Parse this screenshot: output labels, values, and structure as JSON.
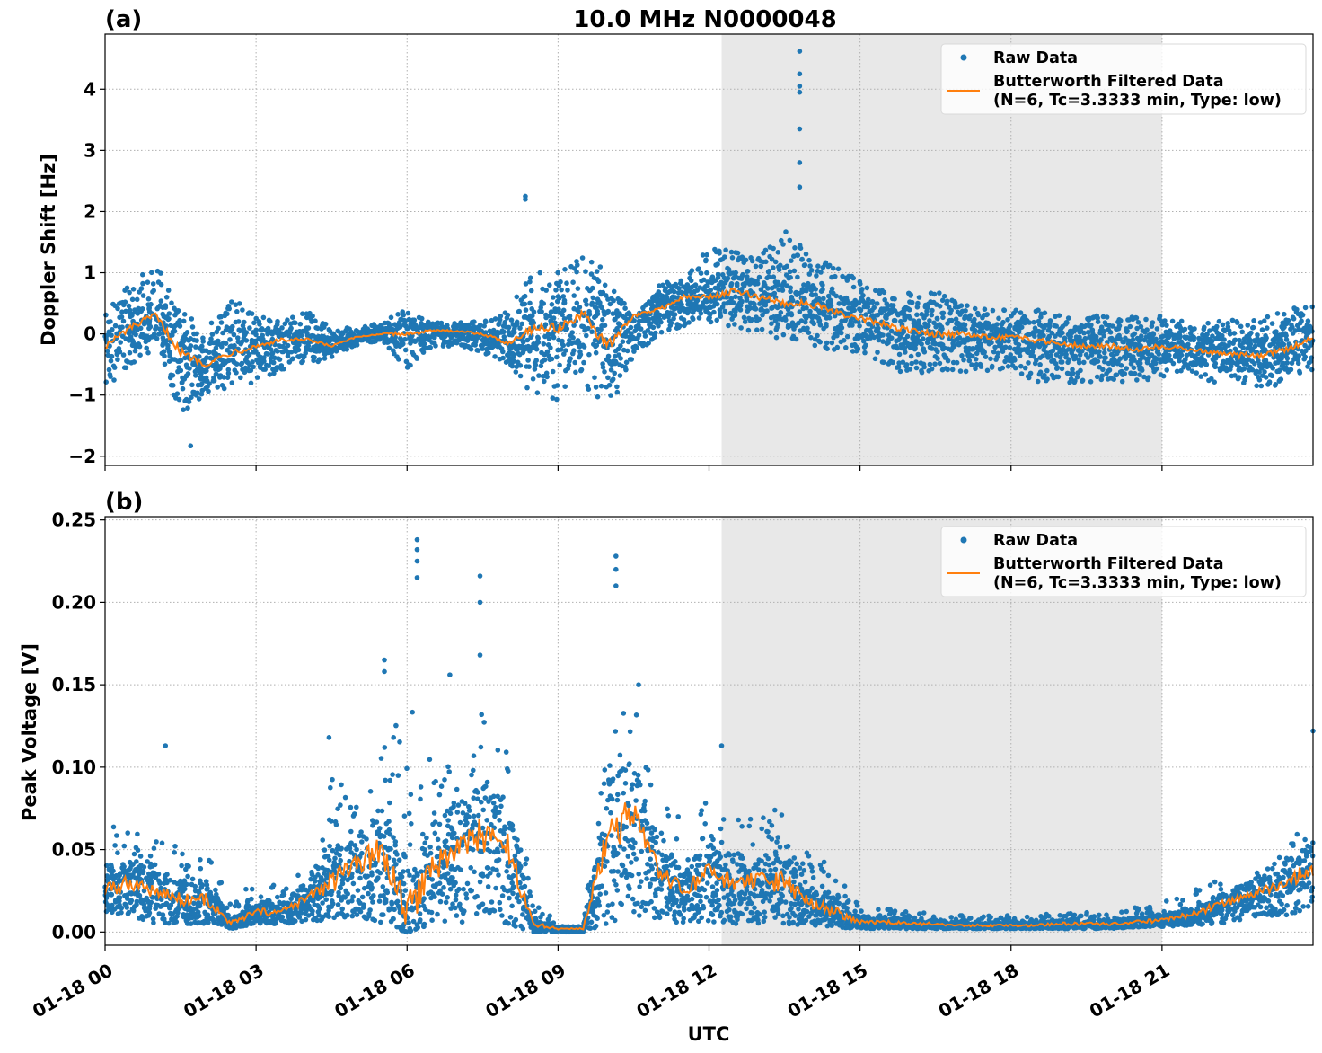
{
  "colors": {
    "raw": "#1f77b4",
    "filtered": "#ff7f0e",
    "shade": "#e8e8e8",
    "grid": "#b0b0b0"
  },
  "chart_data": [
    {
      "type": "scatter",
      "panel_label": "(a)",
      "title": "10.0 MHz N0000048",
      "xlabel": "",
      "ylabel": "Doppler Shift [Hz]",
      "xlim_hours": [
        0,
        24
      ],
      "ylim": [
        -2.15,
        4.9
      ],
      "yticks": [
        -2,
        -1,
        0,
        1,
        2,
        3,
        4
      ],
      "ytick_labels": [
        "−2",
        "−1",
        "0",
        "1",
        "2",
        "3",
        "4"
      ],
      "grid": true,
      "shaded_hours": [
        12.25,
        21.0
      ],
      "legend_position": "upper-right",
      "legend": [
        {
          "label": "Raw Data",
          "kind": "marker"
        },
        {
          "label": "Butterworth Filtered Data",
          "label2": "(N=6, Tc=3.3333 min, Type: low)",
          "kind": "line"
        }
      ],
      "series": [
        {
          "name": "Raw Data",
          "kind": "scatter-band",
          "x": [
            0,
            0.5,
            1.0,
            1.5,
            2.0,
            2.5,
            3.0,
            3.5,
            4.0,
            4.5,
            5.0,
            5.5,
            6.0,
            6.5,
            7.0,
            7.5,
            8.0,
            8.5,
            9.0,
            9.5,
            10.0,
            10.5,
            11.0,
            11.5,
            12.0,
            12.5,
            13.0,
            13.5,
            14.0,
            14.5,
            15.0,
            15.5,
            16.0,
            16.5,
            17.0,
            17.5,
            18.0,
            18.5,
            19.0,
            19.5,
            20.0,
            20.5,
            21.0,
            21.5,
            22.0,
            22.5,
            23.0,
            23.5,
            24.0
          ],
          "low": [
            -0.9,
            -0.5,
            -0.3,
            -1.3,
            -1.0,
            -0.9,
            -0.8,
            -0.6,
            -0.5,
            -0.4,
            -0.2,
            -0.1,
            -0.6,
            -0.2,
            -0.2,
            -0.3,
            -0.5,
            -1.0,
            -1.1,
            -0.8,
            -1.3,
            -0.4,
            0.0,
            0.1,
            0.2,
            0.1,
            0.0,
            -0.1,
            -0.2,
            -0.3,
            -0.3,
            -0.5,
            -0.7,
            -0.6,
            -0.7,
            -0.6,
            -0.6,
            -0.8,
            -0.8,
            -0.8,
            -0.8,
            -0.8,
            -0.7,
            -0.6,
            -0.8,
            -0.8,
            -0.9,
            -0.8,
            -0.6
          ],
          "high": [
            0.5,
            0.8,
            1.2,
            0.4,
            0.1,
            0.6,
            0.3,
            0.2,
            0.4,
            0.1,
            0.1,
            0.2,
            0.4,
            0.2,
            0.2,
            0.2,
            0.4,
            1.0,
            1.0,
            1.3,
            1.0,
            0.2,
            0.8,
            1.0,
            1.4,
            1.4,
            1.3,
            1.7,
            1.3,
            1.1,
            0.9,
            0.7,
            0.7,
            0.7,
            0.5,
            0.4,
            0.4,
            0.4,
            0.3,
            0.3,
            0.3,
            0.3,
            0.3,
            0.2,
            0.2,
            0.3,
            0.3,
            0.4,
            0.5
          ]
        },
        {
          "name": "Butterworth Filtered Data",
          "kind": "line",
          "x": [
            0,
            0.5,
            1.0,
            1.5,
            2.0,
            2.5,
            3.0,
            3.5,
            4.0,
            4.5,
            5.0,
            5.5,
            6.0,
            6.5,
            7.0,
            7.5,
            8.0,
            8.5,
            9.0,
            9.5,
            10.0,
            10.5,
            11.0,
            11.5,
            12.0,
            12.5,
            13.0,
            13.5,
            14.0,
            14.5,
            15.0,
            15.5,
            16.0,
            16.5,
            17.0,
            17.5,
            18.0,
            18.5,
            19.0,
            19.5,
            20.0,
            20.5,
            21.0,
            21.5,
            22.0,
            22.5,
            23.0,
            23.5,
            24.0
          ],
          "y": [
            -0.2,
            0.1,
            0.3,
            -0.3,
            -0.5,
            -0.3,
            -0.2,
            -0.1,
            -0.1,
            -0.2,
            -0.05,
            0.0,
            0.0,
            0.05,
            0.05,
            0.0,
            -0.15,
            0.1,
            0.1,
            0.3,
            -0.2,
            0.3,
            0.4,
            0.6,
            0.6,
            0.7,
            0.6,
            0.5,
            0.5,
            0.35,
            0.25,
            0.15,
            0.05,
            0.0,
            0.0,
            -0.05,
            -0.05,
            -0.1,
            -0.15,
            -0.2,
            -0.2,
            -0.25,
            -0.2,
            -0.25,
            -0.3,
            -0.35,
            -0.35,
            -0.25,
            -0.05
          ]
        }
      ],
      "outliers": [
        {
          "x": 13.8,
          "y": 4.62
        },
        {
          "x": 13.8,
          "y": 4.25
        },
        {
          "x": 13.8,
          "y": 4.05
        },
        {
          "x": 13.8,
          "y": 3.95
        },
        {
          "x": 13.8,
          "y": 3.35
        },
        {
          "x": 13.8,
          "y": 2.8
        },
        {
          "x": 13.8,
          "y": 2.4
        },
        {
          "x": 8.35,
          "y": 2.25
        },
        {
          "x": 8.35,
          "y": 2.2
        },
        {
          "x": 1.7,
          "y": -1.83
        }
      ]
    },
    {
      "type": "scatter",
      "panel_label": "(b)",
      "title": "",
      "xlabel": "UTC",
      "ylabel": "Peak Voltage [V]",
      "xlim_hours": [
        0,
        24
      ],
      "ylim": [
        -0.008,
        0.252
      ],
      "yticks": [
        0.0,
        0.05,
        0.1,
        0.15,
        0.2,
        0.25
      ],
      "ytick_labels": [
        "0.00",
        "0.05",
        "0.10",
        "0.15",
        "0.20",
        "0.25"
      ],
      "xticks_hours": [
        0,
        3,
        6,
        9,
        12,
        15,
        18,
        21
      ],
      "xtick_labels": [
        "01-18 00",
        "01-18 03",
        "01-18 06",
        "01-18 09",
        "01-18 12",
        "01-18 15",
        "01-18 18",
        "01-18 21"
      ],
      "grid": true,
      "shaded_hours": [
        12.25,
        21.0
      ],
      "legend_position": "upper-right",
      "legend": [
        {
          "label": "Raw Data",
          "kind": "marker"
        },
        {
          "label": "Butterworth Filtered Data",
          "label2": "(N=6, Tc=3.3333 min, Type: low)",
          "kind": "line"
        }
      ],
      "series": [
        {
          "name": "Raw Data",
          "kind": "scatter-band",
          "x": [
            0,
            0.5,
            1.0,
            1.5,
            2.0,
            2.5,
            3.0,
            3.5,
            4.0,
            4.5,
            5.0,
            5.5,
            6.0,
            6.5,
            7.0,
            7.5,
            8.0,
            8.5,
            9.0,
            9.5,
            10.0,
            10.5,
            11.0,
            11.5,
            12.0,
            12.5,
            13.0,
            13.5,
            14.0,
            14.5,
            15.0,
            15.5,
            16.0,
            16.5,
            17.0,
            17.5,
            18.0,
            18.5,
            19.0,
            19.5,
            20.0,
            20.5,
            21.0,
            21.5,
            22.0,
            22.5,
            23.0,
            23.5,
            24.0
          ],
          "low": [
            0.01,
            0.01,
            0.005,
            0.005,
            0.005,
            0.002,
            0.005,
            0.005,
            0.005,
            0.008,
            0.01,
            0.005,
            0.0,
            0.005,
            0.005,
            0.01,
            0.005,
            0.0,
            0.0,
            0.0,
            0.005,
            0.01,
            0.008,
            0.005,
            0.006,
            0.005,
            0.005,
            0.005,
            0.004,
            0.003,
            0.002,
            0.002,
            0.002,
            0.002,
            0.002,
            0.002,
            0.002,
            0.002,
            0.002,
            0.002,
            0.002,
            0.003,
            0.003,
            0.004,
            0.005,
            0.006,
            0.01,
            0.01,
            0.015
          ],
          "high": [
            0.07,
            0.06,
            0.06,
            0.05,
            0.05,
            0.02,
            0.03,
            0.03,
            0.04,
            0.1,
            0.08,
            0.12,
            0.14,
            0.11,
            0.12,
            0.14,
            0.12,
            0.02,
            0.005,
            0.005,
            0.13,
            0.15,
            0.08,
            0.07,
            0.08,
            0.07,
            0.07,
            0.08,
            0.05,
            0.04,
            0.015,
            0.015,
            0.012,
            0.012,
            0.01,
            0.01,
            0.01,
            0.01,
            0.012,
            0.012,
            0.012,
            0.015,
            0.018,
            0.025,
            0.03,
            0.035,
            0.04,
            0.05,
            0.08
          ]
        },
        {
          "name": "Butterworth Filtered Data",
          "kind": "line",
          "x": [
            0,
            0.5,
            1.0,
            1.5,
            2.0,
            2.5,
            3.0,
            3.5,
            4.0,
            4.5,
            5.0,
            5.5,
            6.0,
            6.5,
            7.0,
            7.5,
            8.0,
            8.5,
            9.0,
            9.5,
            10.0,
            10.5,
            11.0,
            11.5,
            12.0,
            12.5,
            13.0,
            13.5,
            14.0,
            14.5,
            15.0,
            15.5,
            16.0,
            16.5,
            17.0,
            17.5,
            18.0,
            18.5,
            19.0,
            19.5,
            20.0,
            20.5,
            21.0,
            21.5,
            22.0,
            22.5,
            23.0,
            23.5,
            24.0
          ],
          "y": [
            0.025,
            0.03,
            0.025,
            0.02,
            0.02,
            0.005,
            0.012,
            0.012,
            0.02,
            0.03,
            0.04,
            0.05,
            0.01,
            0.04,
            0.05,
            0.06,
            0.05,
            0.005,
            0.002,
            0.002,
            0.06,
            0.07,
            0.035,
            0.025,
            0.035,
            0.03,
            0.03,
            0.03,
            0.018,
            0.012,
            0.006,
            0.006,
            0.005,
            0.005,
            0.004,
            0.004,
            0.004,
            0.004,
            0.005,
            0.005,
            0.005,
            0.006,
            0.007,
            0.01,
            0.015,
            0.02,
            0.025,
            0.03,
            0.04
          ]
        }
      ],
      "outliers": [
        {
          "x": 6.2,
          "y": 0.238
        },
        {
          "x": 6.2,
          "y": 0.232
        },
        {
          "x": 6.2,
          "y": 0.225
        },
        {
          "x": 6.2,
          "y": 0.215
        },
        {
          "x": 10.15,
          "y": 0.228
        },
        {
          "x": 10.15,
          "y": 0.22
        },
        {
          "x": 10.15,
          "y": 0.21
        },
        {
          "x": 7.45,
          "y": 0.216
        },
        {
          "x": 7.45,
          "y": 0.2
        },
        {
          "x": 5.55,
          "y": 0.165
        },
        {
          "x": 5.55,
          "y": 0.158
        },
        {
          "x": 6.85,
          "y": 0.156
        },
        {
          "x": 7.45,
          "y": 0.168
        },
        {
          "x": 10.6,
          "y": 0.15
        },
        {
          "x": 24.0,
          "y": 0.122
        },
        {
          "x": 1.2,
          "y": 0.113
        },
        {
          "x": 4.45,
          "y": 0.118
        },
        {
          "x": 12.25,
          "y": 0.113
        }
      ]
    }
  ]
}
